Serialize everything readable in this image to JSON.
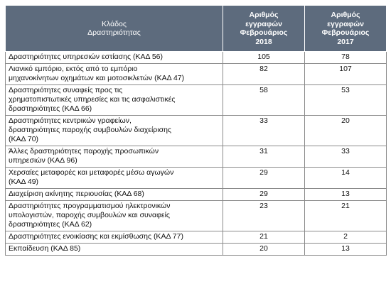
{
  "table": {
    "headers": {
      "sector": [
        "Κλάδος",
        "Δραστηριότητας"
      ],
      "col2018": [
        "Αριθμός",
        "εγγραφών",
        "Φεβρουάριος",
        "2018"
      ],
      "col2017": [
        "Αριθμός",
        "εγγραφών",
        "Φεβρουάριος",
        "2017"
      ]
    },
    "rows": [
      {
        "sector": [
          "Δραστηριότητες υπηρεσιών εστίασης (ΚΑΔ 56)"
        ],
        "v2018": "105",
        "v2017": "78"
      },
      {
        "sector": [
          "Λιανικό εμπόριο, εκτός από το εμπόριο",
          "μηχανοκίνητων οχημάτων και μοτοσικλετών (ΚΑΔ 47)"
        ],
        "v2018": "82",
        "v2017": "107"
      },
      {
        "sector": [
          "Δραστηριότητες συναφείς προς τις",
          "χρηματοπιστωτικές υπηρεσίες και τις ασφαλιστικές",
          "δραστηριότητες (ΚΑΔ 66)"
        ],
        "v2018": "58",
        "v2017": "53"
      },
      {
        "sector": [
          "Δραστηριότητες κεντρικών γραφείων,",
          "δραστηριότητες παροχής συμβουλών διαχείρισης",
          "(ΚΑΔ 70)"
        ],
        "v2018": "33",
        "v2017": "20"
      },
      {
        "sector": [
          "Άλλες δραστηριότητες παροχής προσωπικών",
          "υπηρεσιών (ΚΑΔ 96)"
        ],
        "v2018": "31",
        "v2017": "33"
      },
      {
        "sector": [
          "Χερσαίες μεταφορές και μεταφορές μέσω αγωγών",
          "(ΚΑΔ 49)"
        ],
        "v2018": "29",
        "v2017": "14"
      },
      {
        "sector": [
          "Διαχείριση ακίνητης περιουσίας (ΚΑΔ 68)"
        ],
        "v2018": "29",
        "v2017": "13"
      },
      {
        "sector": [
          "Δραστηριότητες προγραμματισμού ηλεκτρονικών",
          "υπολογιστών, παροχής συμβουλών και συναφείς",
          "δραστηριότητες (ΚΑΔ 62)"
        ],
        "v2018": "23",
        "v2017": "21"
      },
      {
        "sector": [
          "Δραστηριότητες ενοικίασης και εκμίσθωσης (ΚΑΔ 77)"
        ],
        "v2018": "21",
        "v2017": "2"
      },
      {
        "sector": [
          "Εκπαίδευση (ΚΑΔ 85)"
        ],
        "v2018": "20",
        "v2017": "13"
      }
    ]
  },
  "colors": {
    "header_bg": "#5d6b7d",
    "header_text": "#ffffff",
    "border": "#8a8a8a"
  }
}
